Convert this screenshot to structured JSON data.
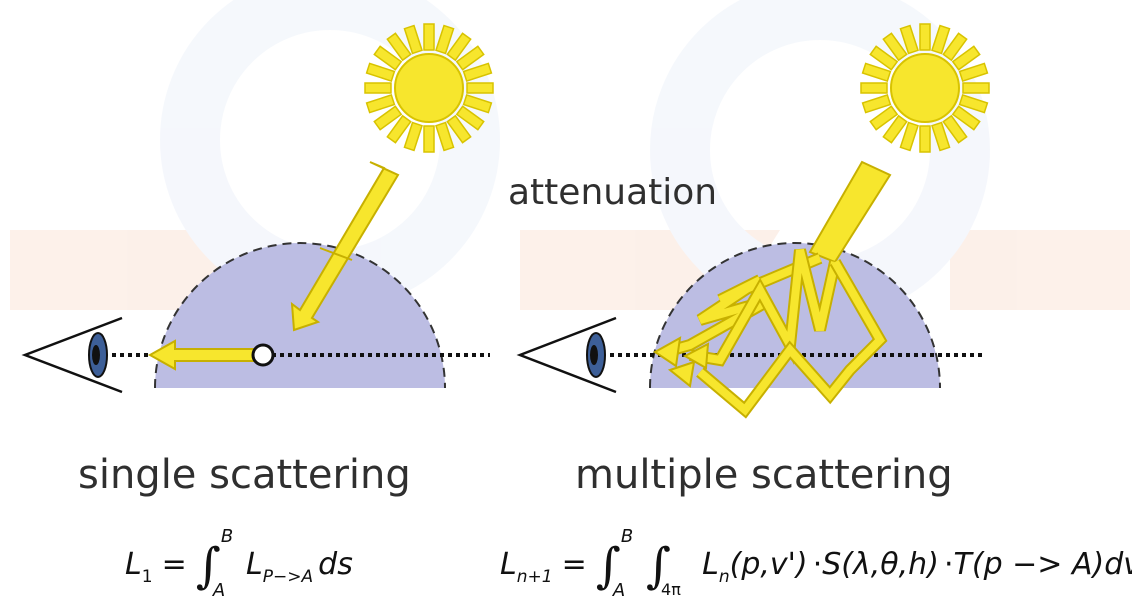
{
  "labels": {
    "attenuation": "attenuation",
    "single": "single scattering",
    "multiple": "multiple scattering"
  },
  "formula_single": {
    "lhs": "L",
    "lhs_sub": "1",
    "eq": "=",
    "upper": "B",
    "lower": "A",
    "integrand": "L",
    "integrand_sub": "P−>A",
    "tail": "ds"
  },
  "formula_multiple": {
    "lhs": "L",
    "lhs_sub": "n+1",
    "eq": "=",
    "upper": "B",
    "lower": "A",
    "lower2": "4π",
    "integrand": "L",
    "integrand_sub": "n",
    "args": "(p,v')",
    "dot1": "·",
    "s_term": "S(λ,θ,h)",
    "dot2": "·",
    "t_term": "T(p −> A)",
    "tail": "dv'ds"
  },
  "colors": {
    "sun": "#f7e62d",
    "sun_stroke": "#d8c300",
    "dome": "#bcbde3",
    "arrow": "#f7e62d",
    "eye_iris": "#3d5f98"
  }
}
